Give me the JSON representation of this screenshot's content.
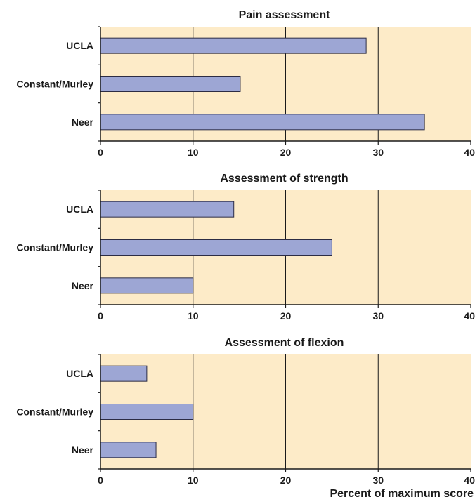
{
  "chart_data": [
    {
      "type": "bar",
      "orientation": "horizontal",
      "title": "Pain assessment",
      "categories": [
        "UCLA",
        "Constant/Murley",
        "Neer"
      ],
      "values": [
        28.7,
        15.1,
        35.0
      ],
      "xlim": [
        0,
        40
      ],
      "xticks": [
        "0",
        "10",
        "20",
        "30",
        "40"
      ],
      "xlabel": "",
      "grid": "vertical at 10, 20, 30"
    },
    {
      "type": "bar",
      "orientation": "horizontal",
      "title": "Assessment of strength",
      "categories": [
        "UCLA",
        "Constant/Murley",
        "Neer"
      ],
      "values": [
        14.4,
        25.0,
        10.0
      ],
      "xlim": [
        0,
        40
      ],
      "xticks": [
        "0",
        "10",
        "20",
        "30",
        "40"
      ],
      "xlabel": "",
      "grid": "vertical at 10, 20, 30"
    },
    {
      "type": "bar",
      "orientation": "horizontal",
      "title": "Assessment of flexion",
      "categories": [
        "UCLA",
        "Constant/Murley",
        "Neer"
      ],
      "values": [
        5.0,
        10.0,
        6.0
      ],
      "xlim": [
        0,
        40
      ],
      "xticks": [
        "0",
        "10",
        "20",
        "30",
        "40"
      ],
      "xlabel": "Percent of maximum score",
      "grid": "vertical at 10, 20, 30"
    }
  ],
  "colors": {
    "plot_background": "#fdebc8",
    "bar_fill": "#9da6d4",
    "bar_stroke": "#2c2c44",
    "axis": "#1a1a1a",
    "grid": "#1a1a1a"
  }
}
